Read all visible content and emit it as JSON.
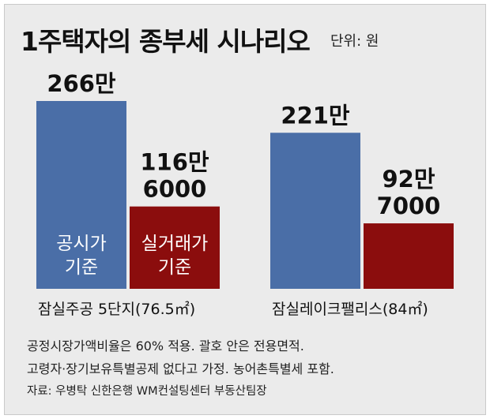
{
  "title": "1주택자의 종부세 시나리오",
  "unit": "단위: 원",
  "chart_data": {
    "type": "bar",
    "title": "1주택자의 종부세 시나리오",
    "unit": "단위: 원",
    "categories": [
      "잠실주공 5단지(76.5㎡)",
      "잠실레이크팰리스(84㎡)"
    ],
    "series": [
      {
        "name": "공시가 기준",
        "label_lines": [
          "공시가",
          "기준"
        ],
        "color": "#4a6ea7",
        "values": [
          2660000,
          2210000
        ],
        "value_labels": [
          [
            "266만"
          ],
          [
            "221만"
          ]
        ]
      },
      {
        "name": "실거래가 기준",
        "label_lines": [
          "실거래가",
          "기준"
        ],
        "color": "#8b0d0d",
        "values": [
          1166000,
          927000
        ],
        "value_labels": [
          [
            "116만",
            "6000"
          ],
          [
            "92만",
            "7000"
          ]
        ]
      }
    ],
    "grid": false,
    "legend": "none"
  },
  "notes": [
    "공정시장가액비율은 60% 적용. 괄호 안은 전용면적.",
    "고령자·장기보유특별공제 없다고 가정. 농어촌특별세 포함."
  ],
  "source": "자료: 우병탁 신한은행 WM컨설팅센터 부동산팀장"
}
